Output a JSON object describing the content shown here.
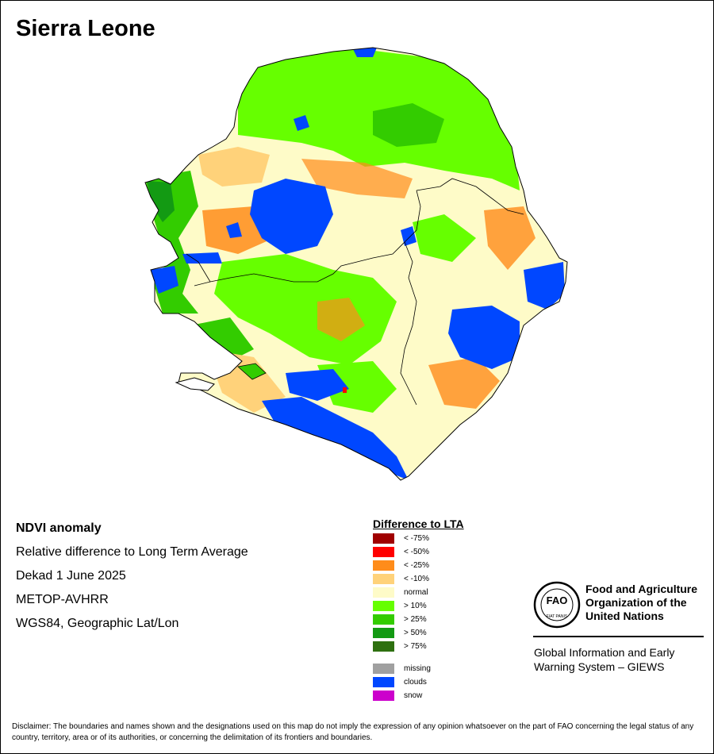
{
  "map": {
    "title": "Sierra Leone",
    "colors": {
      "outside": "#ffffff",
      "normal": "#fefbc8",
      "border": "#000000"
    }
  },
  "info": {
    "title": "NDVI anomaly",
    "line1": "Relative difference to Long Term Average",
    "line2": "Dekad 1 June 2025",
    "line3": "METOP-AVHRR",
    "line4": "WGS84, Geographic Lat/Lon"
  },
  "legend": {
    "title": "Difference to LTA",
    "items": [
      {
        "label": "< -75%",
        "color": "#a00000"
      },
      {
        "label": "< -50%",
        "color": "#ff0000"
      },
      {
        "label": "< -25%",
        "color": "#ff8c1a"
      },
      {
        "label": "< -10%",
        "color": "#ffd27a"
      },
      {
        "label": "normal",
        "color": "#fefbc8"
      },
      {
        "label": "> 10%",
        "color": "#66ff00"
      },
      {
        "label": "> 25%",
        "color": "#33cc00"
      },
      {
        "label": "> 50%",
        "color": "#139a13"
      },
      {
        "label": "> 75%",
        "color": "#2e7010"
      }
    ],
    "extra": [
      {
        "label": "missing",
        "color": "#a0a0a0"
      },
      {
        "label": "clouds",
        "color": "#0047ff"
      },
      {
        "label": "snow",
        "color": "#cc00cc"
      }
    ]
  },
  "org": {
    "name_line1": "Food and Agriculture",
    "name_line2": "Organization of the",
    "name_line3": "United Nations",
    "logo_text": "FAO",
    "logo_motto": "FIAT PANIS",
    "giews_line1": "Global Information and Early",
    "giews_line2": "Warning System – GIEWS"
  },
  "disclaimer": "Disclaimer: The boundaries and names shown and the designations used on this map do not imply the expression of any opinion whatsoever on the part of FAO concerning the legal status of any country, territory, area or of its authorities, or concerning the delimitation of its frontiers and boundaries."
}
